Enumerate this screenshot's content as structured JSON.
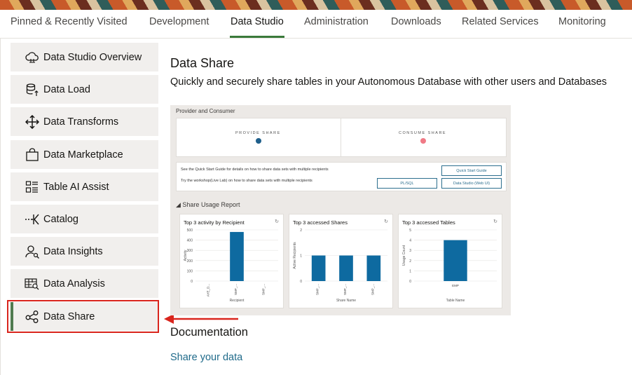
{
  "tabs": [
    "Pinned & Recently Visited",
    "Development",
    "Data Studio",
    "Administration",
    "Downloads",
    "Related Services",
    "Monitoring"
  ],
  "sidebar": {
    "items": [
      {
        "label": "Data Studio Overview",
        "icon": "cloud-icon"
      },
      {
        "label": "Data Load",
        "icon": "database-upload-icon"
      },
      {
        "label": "Data Transforms",
        "icon": "move-arrows-icon"
      },
      {
        "label": "Data Marketplace",
        "icon": "shopping-bag-icon"
      },
      {
        "label": "Table AI Assist",
        "icon": "table-list-icon"
      },
      {
        "label": "Catalog",
        "icon": "catalog-arrow-icon"
      },
      {
        "label": "Data Insights",
        "icon": "user-search-icon"
      },
      {
        "label": "Data Analysis",
        "icon": "table-search-icon"
      },
      {
        "label": "Data Share",
        "icon": "share-nodes-icon"
      }
    ]
  },
  "main": {
    "title": "Data Share",
    "description": "Quickly and securely share tables in your Autonomous Database with other users and Databases",
    "documentation_title": "Documentation",
    "documentation_link": "Share your data"
  },
  "preview": {
    "section_label": "Provider and Consumer",
    "provide_label": "PROVIDE SHARE",
    "consume_label": "CONSUME SHARE",
    "line1": "See the Quick Start Guide for details on how to share data sets with multiple recipients",
    "line2": "Try the workshop(Live Lab) on how to share data sets with multiple recipients",
    "btn_quick": "Quick Start Guide",
    "btn_plsql": "PL/SQL",
    "btn_studio": "Data Studio (Web UI)",
    "report_label": "◢ Share Usage Report",
    "colors": {
      "provide": "#1f5f8b",
      "consume": "#f07a86",
      "bar": "#0e6aa0"
    }
  },
  "chart_data": [
    {
      "type": "bar",
      "title": "Top 3 activity by Recipient",
      "xlabel": "Recipient",
      "ylabel": "Activity",
      "categories": [
        "AYE_D...",
        "SMP_...",
        "SMP_..."
      ],
      "values": [
        0,
        480,
        0
      ],
      "ylim": [
        0,
        500
      ],
      "yticks": [
        "0",
        "100",
        "200",
        "300",
        "400",
        "500"
      ]
    },
    {
      "type": "bar",
      "title": "Top 3 accessed Shares",
      "xlabel": "Share Name",
      "ylabel": "Active Recipients",
      "categories": [
        "SMP_...",
        "SMP_...",
        "SMP_..."
      ],
      "values": [
        1,
        1,
        1
      ],
      "ylim": [
        0,
        2
      ],
      "yticks": [
        "0",
        "1",
        "2"
      ]
    },
    {
      "type": "bar",
      "title": "Top 3 accessed Tables",
      "xlabel": "Table Name",
      "ylabel": "Usage Count",
      "categories": [
        "EMP"
      ],
      "values": [
        4
      ],
      "ylim": [
        0,
        5
      ],
      "yticks": [
        "0",
        "1",
        "2",
        "3",
        "4",
        "5"
      ]
    }
  ]
}
